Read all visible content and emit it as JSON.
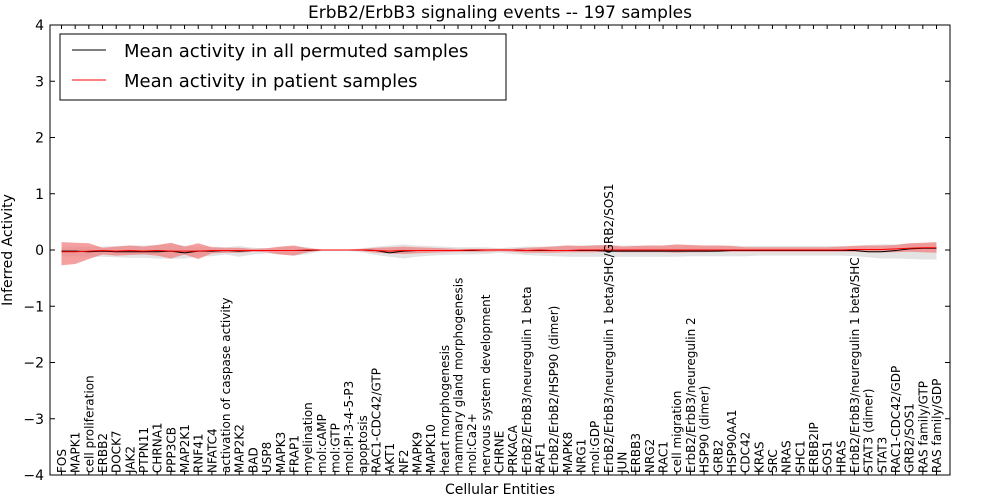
{
  "chart_data": {
    "type": "line",
    "title": "ErbB2/ErbB3 signaling events -- 197 samples",
    "xlabel": "Cellular Entities",
    "ylabel": "Inferred Activity",
    "ylim": [
      -4,
      4
    ],
    "yticks": [
      4,
      3,
      2,
      1,
      0,
      -1,
      -2,
      -3,
      -4
    ],
    "ytick_labels": [
      "4",
      "3",
      "2",
      "1",
      "0",
      "−1",
      "−2",
      "−3",
      "−4"
    ],
    "grid": false,
    "legend_position": "top-left",
    "categories": [
      "FOS",
      "MAPK1",
      "cell proliferation",
      "ERBB2",
      "DOCK7",
      "JAK2",
      "PTPN11",
      "CHRNA1",
      "PPP3CB",
      "MAP2K1",
      "RNF41",
      "NFATC4",
      "activation of caspase activity",
      "MAP2K2",
      "BAD",
      "USP8",
      "MAPK3",
      "FRAP1",
      "myelination",
      "mol:cAMP",
      "mol:GTP",
      "mol:PI-3-4-5-P3",
      "apoptosis",
      "RAC1-CDC42/GTP",
      "AKT1",
      "NF2",
      "MAPK9",
      "MAPK10",
      "heart morphogenesis",
      "mammary gland morphogenesis",
      "mol:Ca2+",
      "nervous system development",
      "CHRNE",
      "PRKACA",
      "ErbB2/ErbB3/neuregulin 1 beta",
      "RAF1",
      "ErbB2/ErbB2/HSP90 (dimer)",
      "MAPK8",
      "NRG1",
      "mol:GDP",
      "ErbB2/ErbB3/neuregulin 1 beta/SHC/GRB2/SOS1",
      "JUN",
      "ERBB3",
      "NRG2",
      "RAC1",
      "cell migration",
      "ErbB2/ErbB3/neuregulin 2",
      "HSP90 (dimer)",
      "GRB2",
      "HSP90AA1",
      "CDC42",
      "KRAS",
      "SRC",
      "NRAS",
      "SHC1",
      "ERBB2IP",
      "SOS1",
      "HRAS",
      "ErbB2/ErbB3/neuregulin 1 beta/SHC",
      "STAT3 (dimer)",
      "STAT3",
      "RAC1-CDC42/GDP",
      "GRB2/SOS1",
      "RAS family/GTP",
      "RAS family/GDP"
    ],
    "series": [
      {
        "name": "Mean activity in all permuted samples",
        "color": "#000000",
        "values": [
          -0.02,
          -0.02,
          -0.03,
          -0.02,
          -0.03,
          -0.03,
          -0.03,
          -0.03,
          -0.02,
          -0.05,
          -0.02,
          -0.02,
          -0.01,
          -0.02,
          -0.01,
          -0.01,
          -0.01,
          -0.01,
          -0.01,
          0,
          0,
          0,
          0,
          -0.01,
          -0.05,
          -0.02,
          -0.01,
          -0.01,
          -0.01,
          -0.01,
          -0.01,
          0,
          0,
          0,
          -0.01,
          -0.01,
          -0.01,
          -0.01,
          -0.01,
          -0.01,
          -0.02,
          -0.02,
          -0.02,
          -0.02,
          -0.02,
          -0.02,
          -0.02,
          -0.02,
          -0.02,
          -0.01,
          -0.01,
          -0.01,
          -0.01,
          -0.01,
          -0.01,
          -0.01,
          -0.01,
          -0.01,
          -0.01,
          -0.03,
          -0.03,
          -0.01,
          0.02,
          0.03,
          0.03
        ]
      },
      {
        "name": "Mean activity in patient samples",
        "color": "#ff0000",
        "values": [
          -0.03,
          -0.03,
          -0.02,
          -0.01,
          -0.02,
          -0.01,
          -0.02,
          -0.01,
          -0.02,
          -0.02,
          -0.02,
          -0.01,
          -0.01,
          -0.01,
          -0.01,
          -0.01,
          -0.01,
          -0.01,
          0,
          0,
          0,
          0,
          0,
          -0.01,
          -0.02,
          -0.01,
          -0.01,
          -0.01,
          -0.01,
          -0.01,
          0,
          0,
          0,
          0,
          -0.01,
          0,
          -0.01,
          -0.01,
          0,
          0,
          0,
          0,
          0,
          0,
          0,
          0,
          0,
          0,
          0,
          0,
          0,
          0,
          0,
          0,
          0,
          0,
          0,
          0,
          0.01,
          0.01,
          0.01,
          0.02,
          0.03,
          0.04,
          0.04
        ]
      }
    ],
    "bands": [
      {
        "series": "Mean activity in all permuted samples",
        "color": "#d0d0d0",
        "upper": [
          0.05,
          0.06,
          0.06,
          0.06,
          0.07,
          0.08,
          0.08,
          0.09,
          0.1,
          0.08,
          0.06,
          0.06,
          0.05,
          0.07,
          0.04,
          0.03,
          0.05,
          0.06,
          0.05,
          0.01,
          0.01,
          0.01,
          0.03,
          0.06,
          0.08,
          0.1,
          0.08,
          0.07,
          0.06,
          0.05,
          0.05,
          0.05,
          0.03,
          0.05,
          0.06,
          0.06,
          0.07,
          0.08,
          0.08,
          0.09,
          0.09,
          0.08,
          0.08,
          0.08,
          0.08,
          0.08,
          0.08,
          0.08,
          0.08,
          0.08,
          0.07,
          0.07,
          0.07,
          0.07,
          0.07,
          0.07,
          0.07,
          0.07,
          0.08,
          0.09,
          0.1,
          0.1,
          0.11,
          0.12,
          0.12
        ],
        "lower": [
          -0.12,
          -0.11,
          -0.12,
          -0.12,
          -0.13,
          -0.14,
          -0.14,
          -0.15,
          -0.16,
          -0.15,
          -0.12,
          -0.11,
          -0.08,
          -0.12,
          -0.08,
          -0.06,
          -0.08,
          -0.1,
          -0.07,
          -0.02,
          -0.02,
          -0.02,
          -0.04,
          -0.09,
          -0.12,
          -0.15,
          -0.12,
          -0.1,
          -0.09,
          -0.08,
          -0.08,
          -0.07,
          -0.05,
          -0.07,
          -0.09,
          -0.1,
          -0.11,
          -0.12,
          -0.12,
          -0.12,
          -0.12,
          -0.12,
          -0.12,
          -0.12,
          -0.12,
          -0.12,
          -0.11,
          -0.11,
          -0.11,
          -0.11,
          -0.11,
          -0.1,
          -0.1,
          -0.1,
          -0.1,
          -0.1,
          -0.1,
          -0.1,
          -0.11,
          -0.13,
          -0.15,
          -0.15,
          -0.16,
          -0.17,
          -0.17
        ]
      },
      {
        "series": "Mean activity in patient samples",
        "color": "#f08080",
        "upper": [
          0.14,
          0.13,
          0.12,
          0.04,
          0.06,
          0.08,
          0.06,
          0.09,
          0.13,
          0.06,
          0.12,
          0.05,
          0.04,
          0.04,
          0.02,
          0.03,
          0.06,
          0.08,
          0.03,
          0.01,
          0.01,
          0.01,
          0.02,
          0.04,
          0.05,
          0.06,
          0.05,
          0.04,
          0.03,
          0.02,
          0.02,
          0.02,
          0.02,
          0.02,
          0.04,
          0.05,
          0.06,
          0.08,
          0.07,
          0.08,
          0.09,
          0.06,
          0.07,
          0.08,
          0.08,
          0.1,
          0.09,
          0.08,
          0.08,
          0.07,
          0.05,
          0.05,
          0.05,
          0.05,
          0.05,
          0.05,
          0.05,
          0.06,
          0.07,
          0.08,
          0.08,
          0.09,
          0.12,
          0.13,
          0.14
        ],
        "lower": [
          -0.27,
          -0.25,
          -0.16,
          -0.08,
          -0.1,
          -0.09,
          -0.08,
          -0.1,
          -0.15,
          -0.08,
          -0.16,
          -0.06,
          -0.05,
          -0.05,
          -0.03,
          -0.04,
          -0.08,
          -0.1,
          -0.04,
          -0.01,
          -0.01,
          -0.01,
          -0.02,
          -0.05,
          -0.06,
          -0.07,
          -0.06,
          -0.05,
          -0.04,
          -0.03,
          -0.03,
          -0.03,
          -0.02,
          -0.03,
          -0.05,
          -0.05,
          -0.05,
          -0.04,
          -0.04,
          -0.04,
          -0.03,
          -0.04,
          -0.04,
          -0.04,
          -0.04,
          -0.05,
          -0.04,
          -0.04,
          -0.03,
          -0.03,
          -0.03,
          -0.03,
          -0.03,
          -0.03,
          -0.03,
          -0.03,
          -0.03,
          -0.03,
          -0.03,
          -0.04,
          -0.04,
          -0.04,
          -0.03,
          -0.04,
          -0.05
        ]
      }
    ]
  }
}
